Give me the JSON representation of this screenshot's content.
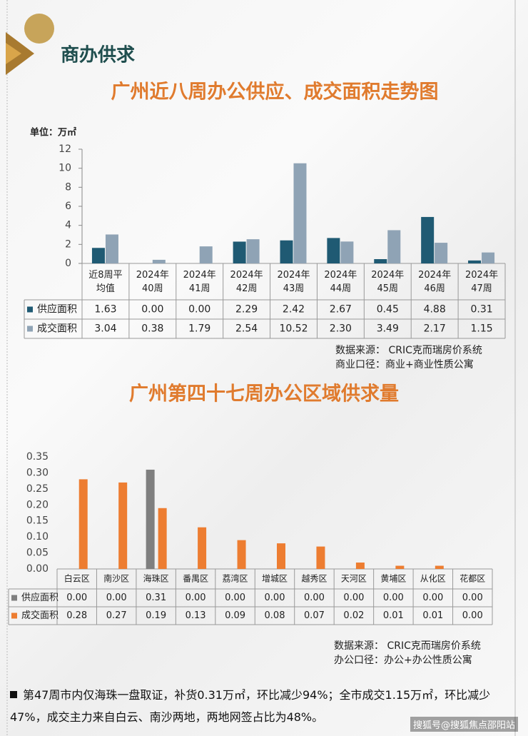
{
  "header": {
    "title": "商办供求"
  },
  "chart_data": [
    {
      "type": "bar",
      "title": "广州近八周办公供应、成交面积走势图",
      "y_label": "单位：万㎡",
      "categories": [
        "近8周平均值",
        "2024年40周",
        "2024年41周",
        "2024年42周",
        "2024年43周",
        "2024年44周",
        "2024年45周",
        "2024年46周",
        "2024年47周"
      ],
      "series": [
        {
          "name": "供应面积",
          "color": "#1f5a73",
          "values": [
            1.63,
            0,
            0,
            2.29,
            2.42,
            2.67,
            0.45,
            4.88,
            0.31
          ],
          "value_labels": [
            "1.63",
            "0.00",
            "0.00",
            "2.29",
            "2.42",
            "2.67",
            "0.45",
            "4.88",
            "0.31"
          ]
        },
        {
          "name": "成交面积",
          "color": "#8fa3b5",
          "values": [
            3.04,
            0.38,
            1.79,
            2.54,
            10.52,
            2.3,
            3.49,
            2.17,
            1.15
          ],
          "value_labels": [
            "3.04",
            "0.38",
            "1.79",
            "2.54",
            "10.52",
            "2.30",
            "3.49",
            "2.17",
            "1.15"
          ]
        }
      ],
      "ylim": [
        0,
        12
      ],
      "yticks": [
        0,
        2,
        4,
        6,
        8,
        10,
        12
      ],
      "annotations": [
        "数据来源： CRIC克而瑞房价系统",
        "商业口径：商业+商业性质公寓"
      ]
    },
    {
      "type": "bar",
      "title": "广州第四十七周办公区域供求量",
      "categories": [
        "白云区",
        "南沙区",
        "海珠区",
        "番禺区",
        "荔湾区",
        "增城区",
        "越秀区",
        "天河区",
        "黄埔区",
        "从化区",
        "花都区"
      ],
      "series": [
        {
          "name": "供应面积",
          "color": "#7f7f7f",
          "values": [
            0,
            0,
            0.31,
            0,
            0,
            0,
            0,
            0,
            0,
            0,
            0
          ],
          "value_labels": [
            "0.00",
            "0.00",
            "0.31",
            "0.00",
            "0.00",
            "0.00",
            "0.00",
            "0.00",
            "0.00",
            "0.00",
            "0.00"
          ]
        },
        {
          "name": "成交面积",
          "color": "#ed7d31",
          "values": [
            0.28,
            0.27,
            0.19,
            0.13,
            0.09,
            0.08,
            0.07,
            0.02,
            0.01,
            0.01,
            0
          ],
          "value_labels": [
            "0.28",
            "0.27",
            "0.19",
            "0.13",
            "0.09",
            "0.08",
            "0.07",
            "0.02",
            "0.01",
            "0.01",
            "0.00"
          ]
        }
      ],
      "ylim": [
        0,
        0.35
      ],
      "yticks": [
        {
          "value": 0,
          "label": "0.00"
        },
        {
          "value": 0.05,
          "label": "0.05"
        },
        {
          "value": 0.1,
          "label": "0.10"
        },
        {
          "value": 0.15,
          "label": "0.15"
        },
        {
          "value": 0.2,
          "label": "0.20"
        },
        {
          "value": 0.25,
          "label": "0.25"
        },
        {
          "value": 0.3,
          "label": "0.30"
        },
        {
          "value": 0.35,
          "label": "0.35"
        }
      ],
      "annotations": [
        "数据来源： CRIC克而瑞房价系统",
        "办公口径：办公+办公性质公寓"
      ]
    }
  ],
  "paragraph": "第47周市内仅海珠一盘取证，补货0.31万㎡，环比减少94%；全市成交1.15万㎡，环比减少47%，成交主力来自白云、南沙两地，两地网签占比为48%。",
  "watermark": "搜狐号@搜狐焦点邵阳站"
}
